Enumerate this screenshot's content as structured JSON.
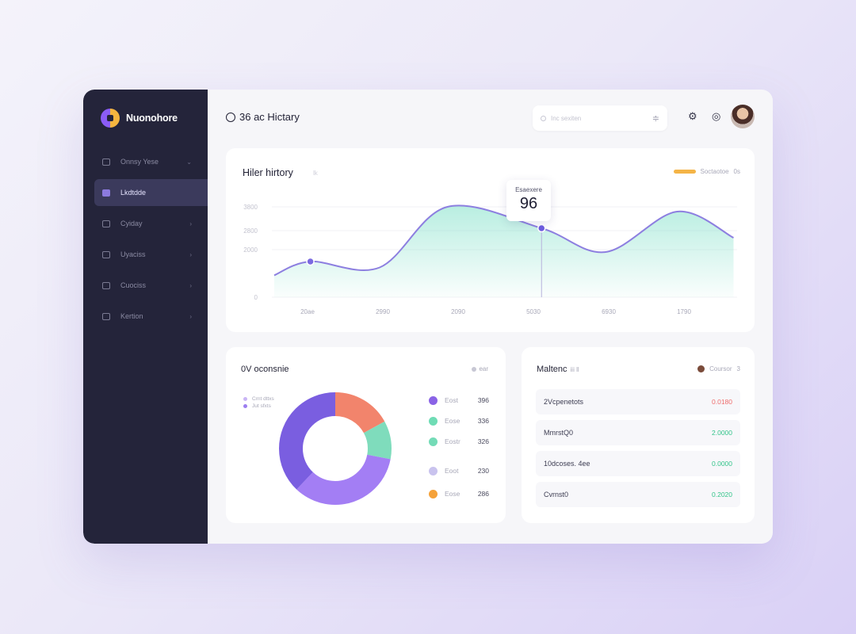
{
  "brand": {
    "name": "Nuonohore"
  },
  "sidebar": {
    "items": [
      {
        "label": "Onnsy Yese",
        "icon": "swap-icon",
        "active": false
      },
      {
        "label": "Lkdtdde",
        "icon": "wallet-icon",
        "active": true
      },
      {
        "label": "Cyiday",
        "icon": "card-icon",
        "active": false
      },
      {
        "label": "Uyaciss",
        "icon": "document-icon",
        "active": false
      },
      {
        "label": "Cuociss",
        "icon": "stack-icon",
        "active": false
      },
      {
        "label": "Kertion",
        "icon": "bar-chart-icon",
        "active": false
      }
    ]
  },
  "header": {
    "title": "36 ac Hictary",
    "search_placeholder": "Inc sexiten",
    "icons": [
      "search-icon",
      "filter-icon",
      "settings-icon",
      "chat-icon",
      "avatar"
    ]
  },
  "history_card": {
    "title": "Hiler hirtory",
    "title_tag": "lk",
    "legend": {
      "label": "Soctaotoe",
      "extra": "0s",
      "color": "#f4b446"
    },
    "tooltip": {
      "label": "Esaexere",
      "value": "96"
    }
  },
  "chart_data": {
    "type": "area",
    "title": "Hiler hirtory",
    "x": [
      "20ae",
      "2990",
      "2090",
      "5030",
      "6930",
      "1790"
    ],
    "y_ticks": [
      "0",
      "2000",
      "2800",
      "3800"
    ],
    "ylim": [
      0,
      4000
    ],
    "series": [
      {
        "points": [
          [
            0,
            920
          ],
          [
            0.48,
            1500
          ],
          [
            1.4,
            1250
          ],
          [
            2.3,
            3800
          ],
          [
            3.55,
            2900
          ],
          [
            4.4,
            1900
          ],
          [
            5.35,
            3600
          ],
          [
            6.1,
            2500
          ]
        ]
      }
    ],
    "highlight": {
      "x": 3.55,
      "value": "96"
    },
    "colors": {
      "line": "#8d7fe0",
      "fill": "#7fe0c8"
    }
  },
  "donut_card": {
    "title": "0V oconsnie",
    "chip": "ear",
    "mini_legend": [
      "Crnt dttxs",
      "Jut sfxts"
    ],
    "legend": [
      {
        "name": "Eost",
        "value": "396",
        "color": "#8a63e6"
      },
      {
        "name": "Eose",
        "value": "336",
        "color": "#6fdcb5"
      },
      {
        "name": "Eostr",
        "value": "326",
        "color": "#74dbb7"
      },
      {
        "name": "Eoot",
        "value": "230",
        "color": "#c9c3ee"
      },
      {
        "name": "Eose",
        "value": "286",
        "color": "#f5a23a"
      }
    ],
    "segments": [
      {
        "name": "purple",
        "value": 38,
        "color": "#7a5ee0"
      },
      {
        "name": "coral",
        "value": 17,
        "color": "#f2846c"
      },
      {
        "name": "mint",
        "value": 11,
        "color": "#7fdcbc"
      },
      {
        "name": "violet",
        "value": 34,
        "color": "#a37ef4"
      }
    ]
  },
  "transactions_card": {
    "title": "Maltenc",
    "title_sub": "iii ll",
    "filter_label": "Coursor",
    "filter_value": "3",
    "rows": [
      {
        "name": "2Vcpenetots",
        "amount": "0.0180",
        "kind": "neg"
      },
      {
        "name": "MmrstQ0",
        "amount": "2.0000",
        "kind": "pos"
      },
      {
        "name": "10dcoses. 4ee",
        "amount": "0.0000",
        "kind": "pos"
      },
      {
        "name": "Cvrnst0",
        "amount": "0.2020",
        "kind": "pos"
      }
    ]
  }
}
